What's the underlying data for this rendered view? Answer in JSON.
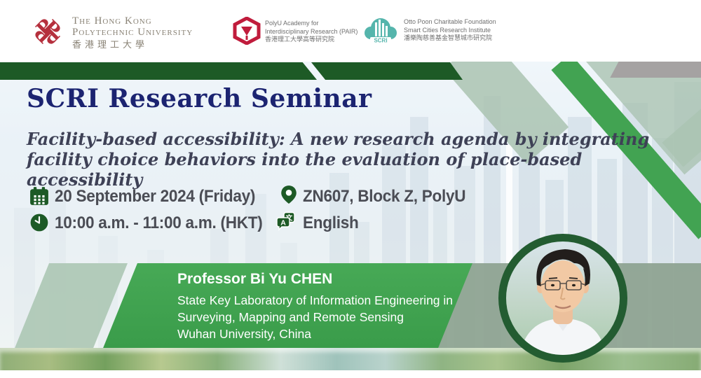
{
  "header": {
    "polyu": {
      "name_line1": "The Hong Kong",
      "name_line2": "Polytechnic University",
      "name_cjk": "香港理工大學"
    },
    "pair": {
      "line1": "PolyU Academy for",
      "line2": "Interdisciplinary Research (PAIR)",
      "line3": "香港理工大學高等研究院"
    },
    "scri": {
      "logo_text": "SCRI",
      "line1": "Otto Poon Charitable Foundation",
      "line2": "Smart Cities Research Institute",
      "line3": "潘樂陶慈善基金智慧城市研究院"
    }
  },
  "seminar": {
    "series_title": "SCRI Research Seminar",
    "talk_title_line1": "Facility-based accessibility: A new research agenda by integrating",
    "talk_title_line2": "facility choice behaviors into the evaluation of place-based accessibility"
  },
  "details": [
    {
      "icon": "calendar",
      "text": "20 September 2024 (Friday)"
    },
    {
      "icon": "location-pin",
      "text": "ZN607, Block Z, PolyU"
    },
    {
      "icon": "clock",
      "text": "10:00 a.m. - 11:00 a.m. (HKT)"
    },
    {
      "icon": "language-translate",
      "text": "English"
    }
  ],
  "language_icon_glyphs": {
    "primary": "A",
    "secondary": "文"
  },
  "speaker": {
    "name": "Professor Bi Yu CHEN",
    "affiliation_line1": "State Key Laboratory of Information Engineering in",
    "affiliation_line2": "Surveying, Mapping and Remote Sensing",
    "affiliation_line3": "Wuhan University, China"
  },
  "colors": {
    "dark_green": "#1d5a26",
    "bright_green": "#42a352",
    "sage_green": "#aac3b1",
    "muted_sage": "#8da290",
    "navy_title": "#1c2471",
    "body_text": "#4b4d55",
    "polyu_red": "#b5303d",
    "pair_red": "#c01c3c",
    "scri_teal": "#55b5ac",
    "white": "#ffffff"
  }
}
